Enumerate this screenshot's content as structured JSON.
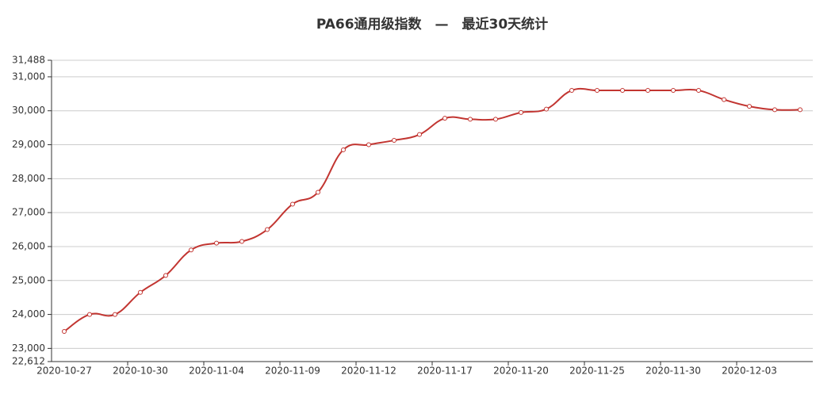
{
  "chart_data": {
    "type": "line",
    "title": "PA66通用级指数　—　最近30天统计",
    "categories": [
      "2020-10-27",
      null,
      null,
      "2020-10-30",
      null,
      null,
      "2020-11-04",
      null,
      null,
      "2020-11-09",
      null,
      null,
      "2020-11-12",
      null,
      null,
      "2020-11-17",
      null,
      null,
      "2020-11-20",
      null,
      null,
      "2020-11-25",
      null,
      null,
      "2020-11-30",
      null,
      null,
      "2020-12-03",
      null,
      null
    ],
    "series": [
      {
        "name": "PA66通用级指数",
        "color": "#c23531",
        "values": [
          23500,
          24000,
          24000,
          24650,
          25150,
          25900,
          26100,
          26150,
          26500,
          27250,
          27600,
          28850,
          29000,
          29130,
          29300,
          29780,
          29750,
          29750,
          29950,
          30050,
          30600,
          30600,
          30600,
          30600,
          30600,
          30600,
          30330,
          30130,
          30030,
          30030
        ]
      }
    ],
    "ylim": [
      22612,
      31488
    ],
    "yticks": [
      {
        "value": 22612,
        "label": "22,612"
      },
      {
        "value": 23000,
        "label": "23,000"
      },
      {
        "value": 24000,
        "label": "24,000"
      },
      {
        "value": 25000,
        "label": "25,000"
      },
      {
        "value": 26000,
        "label": "26,000"
      },
      {
        "value": 27000,
        "label": "27,000"
      },
      {
        "value": 28000,
        "label": "28,000"
      },
      {
        "value": 29000,
        "label": "29,000"
      },
      {
        "value": 30000,
        "label": "30,000"
      },
      {
        "value": 31000,
        "label": "31,000"
      },
      {
        "value": 31488,
        "label": "31,488"
      }
    ],
    "grid": true
  }
}
